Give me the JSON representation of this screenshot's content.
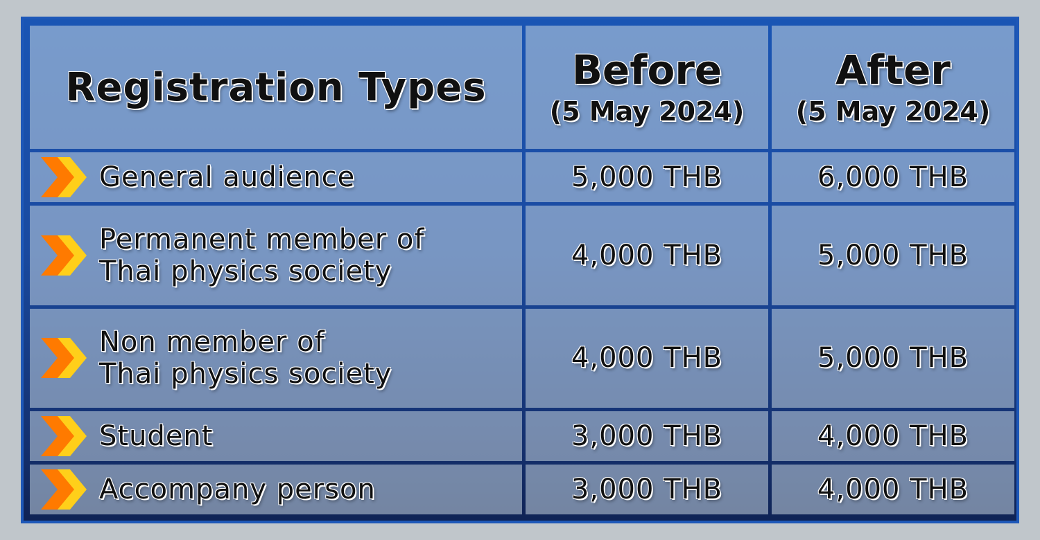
{
  "header": {
    "type_col": "Registration Types",
    "before_title": "Before",
    "before_date": "(5 May 2024)",
    "after_title": "After",
    "after_date": "(5 May 2024)"
  },
  "rows": [
    {
      "label_lines": [
        "General audience"
      ],
      "before": "5,000 THB",
      "after": "6,000 THB"
    },
    {
      "label_lines": [
        "Permanent member of",
        "Thai physics society"
      ],
      "before": "4,000 THB",
      "after": "5,000 THB"
    },
    {
      "label_lines": [
        "Non member of",
        "Thai physics society"
      ],
      "before": "4,000 THB",
      "after": "5,000 THB"
    },
    {
      "label_lines": [
        "Student"
      ],
      "before": "3,000 THB",
      "after": "4,000 THB"
    },
    {
      "label_lines": [
        "Accompany person"
      ],
      "before": "3,000 THB",
      "after": "4,000 THB"
    }
  ],
  "colors": {
    "frame": "#1e58b8",
    "chevron_back": "#ff7a00",
    "chevron_front": "#ffcf1a",
    "map_land": "#a9d6e2"
  },
  "icons": {
    "row_marker": "chevron-arrow-icon"
  }
}
